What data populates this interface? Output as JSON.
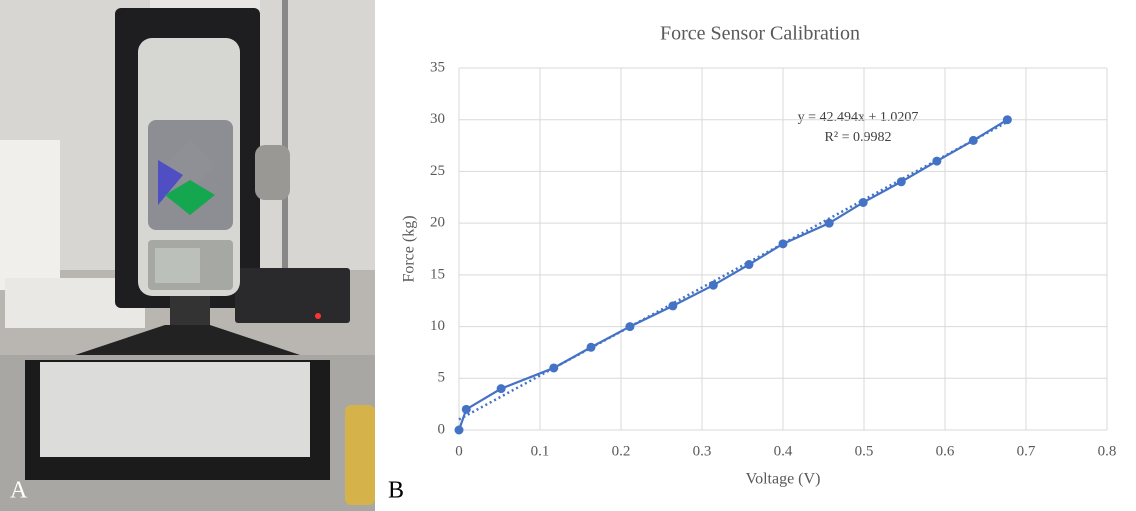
{
  "panels": {
    "a": "A",
    "b": "B"
  },
  "chart_data": {
    "type": "line",
    "title": "Force Sensor Calibration",
    "x_label": "Voltage (V)",
    "y_label": "Force (kg)",
    "x": [
      0,
      0.009,
      0.052,
      0.117,
      0.163,
      0.211,
      0.264,
      0.314,
      0.358,
      0.4,
      0.457,
      0.499,
      0.546,
      0.59,
      0.635,
      0.677
    ],
    "values": [
      0,
      2,
      4,
      6,
      8,
      10,
      12,
      14,
      16,
      18,
      20,
      22,
      24,
      26,
      28,
      30
    ],
    "color": "#4472c4",
    "xlim": [
      0,
      0.8
    ],
    "xticks": [
      0,
      0.1,
      0.2,
      0.3,
      0.4,
      0.5,
      0.6,
      0.7,
      0.8
    ],
    "ylim": [
      0,
      35
    ],
    "yticks": [
      0,
      5,
      10,
      15,
      20,
      25,
      30,
      35
    ],
    "grid": true,
    "trendline": {
      "slope": 42.494,
      "intercept": 1.0207,
      "equation": "y = 42.494x + 1.0207",
      "r2": "R² = 0.9982"
    }
  }
}
